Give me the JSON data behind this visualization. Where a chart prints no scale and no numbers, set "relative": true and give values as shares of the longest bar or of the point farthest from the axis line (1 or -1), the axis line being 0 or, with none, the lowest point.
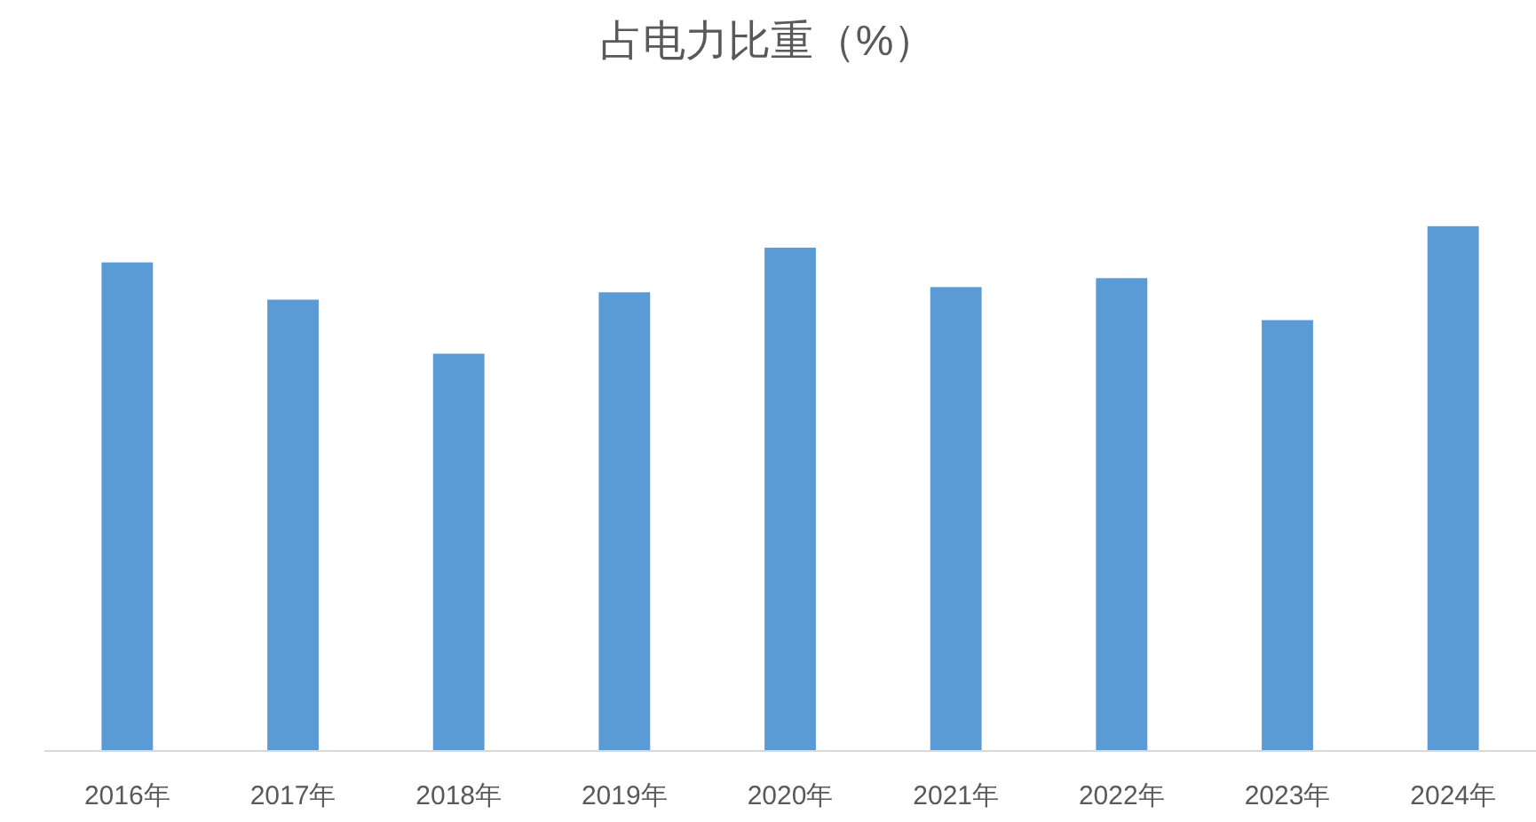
{
  "chart_data": {
    "type": "bar",
    "title": "占电力比重（%）",
    "categories": [
      "2016年",
      "2017年",
      "2018年",
      "2019年",
      "2020年",
      "2021年",
      "2022年",
      "2023年",
      "2024年"
    ],
    "values": [
      0.931,
      0.86,
      0.757,
      0.874,
      0.959,
      0.884,
      0.901,
      0.821,
      1
    ],
    "color": "#5b9bd5",
    "relative": true
  }
}
